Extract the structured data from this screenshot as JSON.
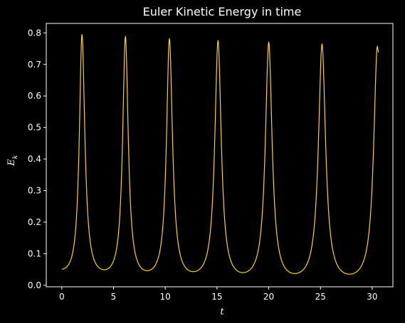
{
  "chart_data": {
    "type": "line",
    "title": "Euler Kinetic Energy in time",
    "xlabel_main": "t",
    "ylabel_main": "E",
    "ylabel_sub": "k",
    "xlim": [
      -1.5,
      32.0
    ],
    "ylim": [
      -0.005,
      0.83
    ],
    "xticks": [
      0,
      5,
      10,
      15,
      20,
      25,
      30
    ],
    "yticks": [
      0.0,
      0.1,
      0.2,
      0.3,
      0.4,
      0.5,
      0.6,
      0.7,
      0.8
    ],
    "ytick_labels": [
      "0.0",
      "0.1",
      "0.2",
      "0.3",
      "0.4",
      "0.5",
      "0.6",
      "0.7",
      "0.8"
    ],
    "grid": false,
    "colors": {
      "background": "#000000",
      "axes": "#ffffff",
      "line": "#ffd21a"
    },
    "series": [
      {
        "peaks": [
          {
            "t": 1.95,
            "e": 0.795
          },
          {
            "t": 6.15,
            "e": 0.789
          },
          {
            "t": 10.4,
            "e": 0.782
          },
          {
            "t": 15.1,
            "e": 0.776
          },
          {
            "t": 20.0,
            "e": 0.771
          },
          {
            "t": 25.15,
            "e": 0.765
          }
        ],
        "valleys": [
          {
            "t": 0.0,
            "e": 0.051
          },
          {
            "t": 4.1,
            "e": 0.049
          },
          {
            "t": 8.25,
            "e": 0.046
          },
          {
            "t": 12.7,
            "e": 0.043
          },
          {
            "t": 17.5,
            "e": 0.04
          },
          {
            "t": 22.5,
            "e": 0.037
          },
          {
            "t": 27.8,
            "e": 0.035
          }
        ],
        "final_rise": {
          "t": 30.5,
          "e": 0.758
        },
        "end": {
          "t": 30.6,
          "e": 0.738
        }
      }
    ]
  }
}
